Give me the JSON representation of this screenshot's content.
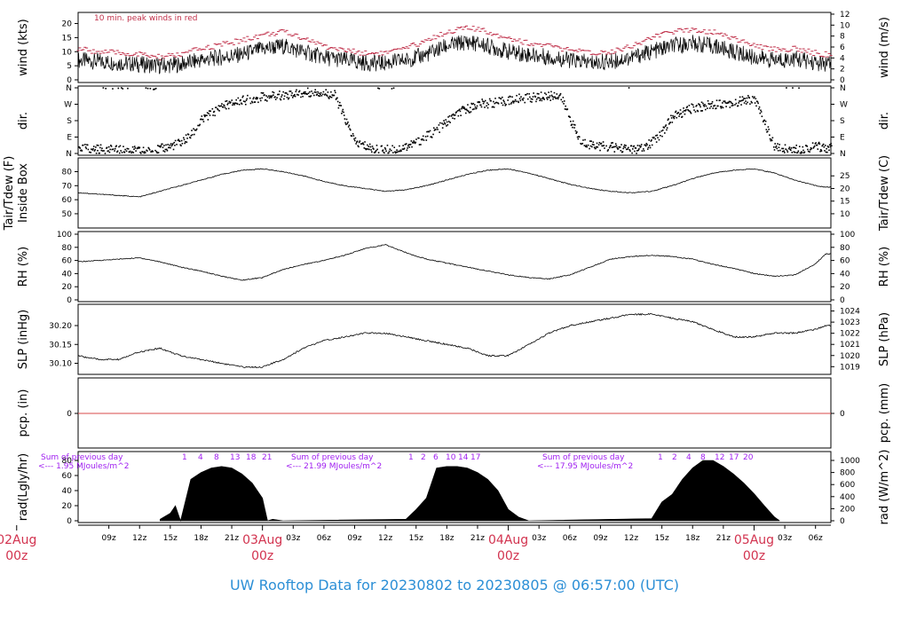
{
  "title": "UW Rooftop Data for 20230802  to  20230805 @ 06:57:00  (UTC)",
  "colors": {
    "title": "#2c8fd6",
    "date": "#d2334f",
    "peak": "#c0304a",
    "annot": "#a020f0",
    "zero": "#d84a4a"
  },
  "chart_data": [
    {
      "type": "line",
      "panel": "wind",
      "ylabel_left": "wind (kts)",
      "ylabel_right": "wind (m/s)",
      "ylim": [
        0,
        23
      ],
      "yticks_left": [
        "0",
        "5",
        "10",
        "15",
        "20"
      ],
      "yticks_right": [
        "0",
        "2",
        "4",
        "6",
        "8",
        "10",
        "12"
      ],
      "note": "10 min. peak winds in red",
      "hours": [
        6,
        8,
        10,
        12,
        14,
        16,
        18,
        20,
        22,
        24,
        26,
        28,
        30,
        32,
        34,
        36,
        38,
        40,
        42,
        44,
        46,
        48,
        50,
        52,
        54,
        56,
        58,
        60,
        62,
        64,
        66,
        68,
        70,
        72,
        74,
        76,
        78,
        79
      ],
      "series": [
        {
          "name": "wind",
          "values": [
            7,
            6.5,
            6,
            5.5,
            5,
            5.5,
            7,
            8,
            9,
            11,
            12,
            10,
            8,
            7,
            6,
            6,
            7,
            9,
            12,
            13.5,
            12,
            10,
            9,
            8,
            7,
            6,
            6.5,
            8,
            10,
            12,
            13,
            12,
            10,
            8,
            7,
            7.5,
            6,
            5.5
          ]
        },
        {
          "name": "peak",
          "values": [
            11,
            10,
            9.5,
            9,
            8,
            9,
            11,
            12.5,
            14,
            16,
            17,
            15,
            12,
            10.5,
            9.5,
            9.5,
            11,
            14,
            17,
            18.5,
            17,
            15,
            13,
            12,
            10.5,
            9.5,
            10,
            12,
            15,
            17,
            18,
            17,
            15,
            12,
            11,
            11,
            9.5,
            9
          ]
        }
      ]
    },
    {
      "type": "scatter",
      "panel": "direction",
      "ylabel_left": "dir.",
      "ylabel_right": "dir.",
      "yticks_left": [
        "N",
        "E",
        "S",
        "W",
        "N"
      ],
      "yticks_right": [
        "N",
        "E",
        "S",
        "W",
        "N"
      ],
      "hours": [
        6,
        9,
        11,
        13,
        15,
        16,
        17,
        18,
        20,
        22,
        24,
        26,
        28,
        29,
        31,
        33,
        35,
        37,
        39,
        41,
        43,
        45,
        47,
        49,
        51,
        53,
        55,
        57,
        59,
        60,
        61,
        62,
        63,
        64,
        66,
        68,
        70,
        72,
        74,
        76,
        78,
        79
      ],
      "values": [
        30,
        20,
        15,
        10,
        40,
        60,
        100,
        180,
        260,
        290,
        310,
        320,
        330,
        340,
        320,
        60,
        20,
        20,
        60,
        130,
        220,
        270,
        280,
        300,
        310,
        320,
        60,
        40,
        30,
        20,
        25,
        60,
        120,
        200,
        250,
        270,
        280,
        300,
        30,
        20,
        40,
        30
      ]
    },
    {
      "type": "line",
      "panel": "temperature",
      "ylabel_left": "Tair/Tdew (F)",
      "ylabel_left2": "Inside Box",
      "ylabel_right": "Tair/Tdew (C)",
      "ylim": [
        43,
        86
      ],
      "yticks_left": [
        "50",
        "60",
        "70",
        "80"
      ],
      "yticks_right": [
        "10",
        "15",
        "20",
        "25"
      ],
      "hours": [
        6,
        8,
        10,
        12,
        14,
        16,
        18,
        20,
        22,
        24,
        26,
        28,
        30,
        32,
        34,
        36,
        38,
        40,
        42,
        44,
        46,
        48,
        50,
        52,
        54,
        56,
        58,
        60,
        62,
        64,
        66,
        68,
        70,
        72,
        74,
        76,
        78,
        79
      ],
      "values": [
        65,
        64,
        63,
        62,
        66,
        70,
        74,
        78,
        81,
        82,
        80,
        77,
        73,
        70,
        68,
        66,
        67,
        70,
        74,
        78,
        81,
        82,
        79,
        75,
        71,
        68,
        66,
        65,
        66,
        70,
        75,
        79,
        81,
        82,
        79,
        74,
        70,
        69
      ]
    },
    {
      "type": "line",
      "panel": "humidity",
      "ylabel_left": "RH (%)",
      "ylabel_right": "RH (%)",
      "ylim": [
        0,
        100
      ],
      "yticks_left": [
        "0",
        "20",
        "40",
        "60",
        "80",
        "100"
      ],
      "yticks_right": [
        "0",
        "20",
        "40",
        "60",
        "80",
        "100"
      ],
      "hours": [
        6,
        8,
        10,
        12,
        14,
        16,
        18,
        20,
        22,
        24,
        26,
        28,
        30,
        32,
        34,
        36,
        38,
        40,
        42,
        44,
        46,
        48,
        50,
        52,
        54,
        56,
        58,
        60,
        62,
        64,
        66,
        68,
        70,
        72,
        74,
        76,
        78,
        79
      ],
      "values": [
        58,
        60,
        62,
        64,
        58,
        50,
        44,
        36,
        30,
        34,
        46,
        54,
        60,
        68,
        78,
        84,
        72,
        62,
        56,
        50,
        44,
        38,
        34,
        32,
        38,
        50,
        62,
        66,
        68,
        66,
        62,
        54,
        48,
        40,
        36,
        38,
        55,
        70
      ]
    },
    {
      "type": "line",
      "panel": "pressure",
      "ylabel_left": "SLP (inHg)",
      "ylabel_right": "SLP (hPa)",
      "ylim": [
        30.08,
        30.24
      ],
      "yticks_left": [
        "30.10",
        "30.15",
        "30.20"
      ],
      "yticks_right": [
        "1019",
        "1020",
        "1021",
        "1022",
        "1023",
        "1024"
      ],
      "hours": [
        6,
        8,
        10,
        12,
        14,
        16,
        18,
        20,
        22,
        24,
        26,
        28,
        30,
        32,
        34,
        36,
        38,
        40,
        42,
        44,
        46,
        48,
        50,
        52,
        54,
        56,
        58,
        60,
        62,
        64,
        66,
        68,
        70,
        72,
        74,
        76,
        78,
        79
      ],
      "values": [
        30.12,
        30.11,
        30.11,
        30.13,
        30.14,
        30.12,
        30.11,
        30.1,
        30.09,
        30.09,
        30.11,
        30.14,
        30.16,
        30.17,
        30.18,
        30.18,
        30.17,
        30.16,
        30.15,
        30.14,
        30.12,
        30.12,
        30.15,
        30.18,
        30.2,
        30.21,
        30.22,
        30.23,
        30.23,
        30.22,
        30.21,
        30.19,
        30.17,
        30.17,
        30.18,
        30.18,
        30.19,
        30.2
      ]
    },
    {
      "type": "line",
      "panel": "precipitation",
      "ylabel_left": "pcp. (in)",
      "ylabel_right": "pcp. (mm)",
      "yticks_left": [
        "0"
      ],
      "yticks_right": [
        "0"
      ],
      "values": [
        0
      ]
    },
    {
      "type": "area",
      "panel": "radiation",
      "ylabel_left": "rad(Lgly/hr)",
      "ylabel_right": "rad (W/m^2)",
      "ylim": [
        0,
        80
      ],
      "yticks_left": [
        "0",
        "20",
        "40",
        "60",
        "80"
      ],
      "yticks_right": [
        "0",
        "200",
        "400",
        "600",
        "800",
        "1000"
      ],
      "hours": [
        14,
        15,
        15.5,
        16,
        17,
        18,
        19,
        20,
        21,
        22,
        23,
        24,
        24.5,
        25,
        26,
        38,
        39,
        40,
        41,
        42,
        43,
        44,
        45,
        46,
        47,
        48,
        49,
        50,
        62,
        63,
        64,
        65,
        66,
        67,
        68,
        69,
        70,
        71,
        72,
        73,
        74,
        74.5
      ],
      "values": [
        2,
        10,
        20,
        0,
        55,
        64,
        70,
        72,
        70,
        62,
        50,
        30,
        0,
        2,
        0,
        2,
        15,
        30,
        70,
        72,
        72,
        70,
        64,
        55,
        40,
        15,
        5,
        0,
        3,
        25,
        35,
        55,
        70,
        80,
        80,
        72,
        62,
        50,
        36,
        20,
        5,
        0
      ],
      "annotations": [
        {
          "line1": "Sum of previous day",
          "line2": "<--- 1.95 MJoules/m^2"
        },
        {
          "line1": "Sum of previous day",
          "line2": "<--- 21.99 MJoules/m^2"
        },
        {
          "line1": "Sum of previous day",
          "line2": "<--- 17.95 MJoules/m^2"
        }
      ],
      "hour_markers": [
        [
          "1",
          "4",
          "8",
          "13",
          "18",
          "21"
        ],
        [
          "1",
          "2",
          "6",
          "10",
          "14",
          "17"
        ],
        [
          "1",
          "2",
          "4",
          "8",
          "12",
          "17",
          "20"
        ]
      ]
    }
  ],
  "x_axis": {
    "ticks": [
      "09z",
      "12z",
      "15z",
      "18z",
      "21z",
      "03z",
      "06z",
      "09z",
      "12z",
      "15z",
      "18z",
      "21z",
      "03z",
      "06z",
      "09z",
      "12z",
      "15z",
      "18z",
      "21z",
      "03z",
      "06z"
    ],
    "tick_hours": [
      9,
      12,
      15,
      18,
      21,
      27,
      30,
      33,
      36,
      39,
      42,
      45,
      51,
      54,
      57,
      60,
      63,
      66,
      69,
      75,
      78
    ],
    "dates": [
      {
        "day": "02Aug",
        "time": "00z",
        "hour": 0
      },
      {
        "day": "03Aug",
        "time": "00z",
        "hour": 24
      },
      {
        "day": "04Aug",
        "time": "00z",
        "hour": 48
      },
      {
        "day": "05Aug",
        "time": "00z",
        "hour": 72
      }
    ]
  }
}
